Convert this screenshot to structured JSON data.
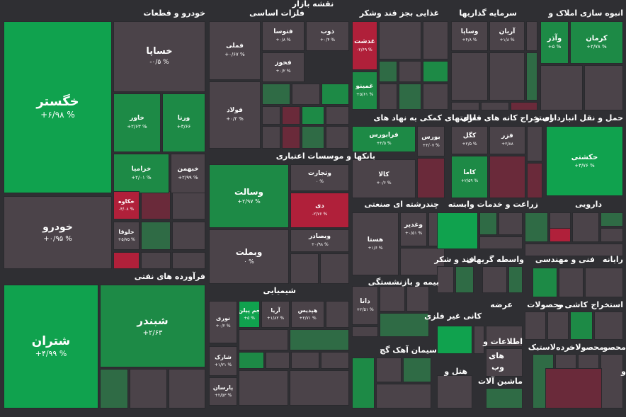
{
  "title": "نقشه بازار",
  "colors": {
    "strong_green": "#10a24e",
    "green": "#1d8a46",
    "mid_green": "#2f6b45",
    "neutral": "#4b4349",
    "dark_red": "#6a2a3a",
    "red": "#b0203a"
  },
  "chart_data": {
    "type": "treemap",
    "title": "نقشه بازار",
    "sectors": [
      "خودرو و قطعات",
      "فلزات اساسی",
      "غذایی بجز قند وشکر",
      "سرمایه گذاریها",
      "انبوه سازی املاک و",
      "فرآورده های نفتی",
      "بانکها و موسسات اعتباری",
      "فعالیتهای کمکی به نهاد های",
      "استخراج کانه های فلزی",
      "حمل و نقل انبارداری و",
      "چندرشته ای صنعتی",
      "زراعت و خدمات وابسته",
      "دارویی",
      "شیمیایی",
      "بیمه و بازنشستگی",
      "قند و شکر",
      "واسطه گریهای",
      "فنی و مهندسی",
      "رایانه",
      "کانی غیر فلزی",
      "عرضه",
      "محصولات",
      "کاشی و",
      "استخراج",
      "سیمان آهک گچ",
      "اطلاعات و",
      "های",
      "وب",
      "هتل و",
      "ماشین آلات",
      "لاستیک",
      "خرده",
      "محصولات",
      "محصو",
      "و"
    ],
    "tiles": [
      {
        "symbol": "خگستر",
        "change": "+۶/۹۸ %"
      },
      {
        "symbol": "خساپا",
        "change": "-۰/۵ %"
      },
      {
        "symbol": "خاور",
        "change": "+۲/۶۳ %"
      },
      {
        "symbol": "ورنا",
        "change": "+۳/۶۶"
      },
      {
        "symbol": "خزامیا",
        "change": "+۲/۰۱ %"
      },
      {
        "symbol": "خبهمن",
        "change": "+۲/۹۹ %"
      },
      {
        "symbol": "خودرو",
        "change": "+۰/۹۵ %"
      },
      {
        "symbol": "خکاوه",
        "change": "-۳/۰۸ %"
      },
      {
        "symbol": "خلوقا",
        "change": "+۵/۷۵ %"
      },
      {
        "symbol": "فملی",
        "change": "+۰/۶۷ %"
      },
      {
        "symbol": "فتوسا",
        "change": "+۰/۸ %"
      },
      {
        "symbol": "ذوب",
        "change": "+۰/۴ %"
      },
      {
        "symbol": "فخوز",
        "change": "+۰/۲ %"
      },
      {
        "symbol": "فولاد",
        "change": "+۰/۲ %"
      },
      {
        "symbol": "غدشت",
        "change": "-۲/۶۹ %"
      },
      {
        "symbol": "غمینو",
        "change": "+۵/۶۱ %"
      },
      {
        "symbol": "وساپا",
        "change": "+۴/۸ %"
      },
      {
        "symbol": "آریان",
        "change": "+۱/۸ %"
      },
      {
        "symbol": "وآذر",
        "change": "+۵ %"
      },
      {
        "symbol": "کرمان",
        "change": "+۲/۷۸ %"
      },
      {
        "symbol": "شتران",
        "change": "+۴/۹۹ %"
      },
      {
        "symbol": "شبندر",
        "change": "+۲/۶۳"
      },
      {
        "symbol": "وسالت",
        "change": "+۲/۹۷ %"
      },
      {
        "symbol": "وبملت",
        "change": "۰ %"
      },
      {
        "symbol": "وتجارت",
        "change": "۰ %"
      },
      {
        "symbol": "دی",
        "change": "-۲/۷۶ %"
      },
      {
        "symbol": "وبصادر",
        "change": "+۰/۹۸ %"
      },
      {
        "symbol": "فرابورس",
        "change": "+۲/۵ %"
      },
      {
        "symbol": "بورس",
        "change": "+۲/۰۷ %"
      },
      {
        "symbol": "کالا",
        "change": "+۰/۶ %"
      },
      {
        "symbol": "کگل",
        "change": "+۲/۵ %"
      },
      {
        "symbol": "فزر",
        "change": "+۲/۸۸"
      },
      {
        "symbol": "کاما",
        "change": "+۲/۵۹ %"
      },
      {
        "symbol": "حکشتی",
        "change": "+۳/۷۶ %"
      },
      {
        "symbol": "وغدیر",
        "change": "+۰/۵۱ %"
      },
      {
        "symbol": "هستا",
        "change": "+۱/۶ %"
      },
      {
        "symbol": "جم پیلن",
        "change": "+۵ %"
      },
      {
        "symbol": "آریا",
        "change": "+۱/۸۲ %"
      },
      {
        "symbol": "هپدیس",
        "change": "+۲/۷۱ %"
      },
      {
        "symbol": "نوری",
        "change": "+۰/۲ %"
      },
      {
        "symbol": "شارک",
        "change": "+۱/۲۱ %"
      },
      {
        "symbol": "پارسان",
        "change": "+۲/۵۳ %"
      },
      {
        "symbol": "دانا",
        "change": "+۲/۵۱ %"
      }
    ]
  }
}
